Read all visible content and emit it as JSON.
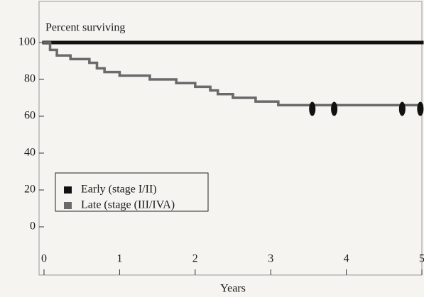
{
  "chart_data": {
    "type": "step",
    "ylabel": "Percent surviving",
    "xlabel": "Years",
    "xlim": [
      0,
      5
    ],
    "ylim": [
      0,
      100
    ],
    "xticks": [
      0,
      1,
      2,
      3,
      4,
      5
    ],
    "yticks": [
      0,
      20,
      40,
      60,
      80,
      100
    ],
    "legend_position": "lower left",
    "series": [
      {
        "name": "Early (stage I/II)",
        "color": "#111111",
        "x": [
          0,
          5
        ],
        "values": [
          100,
          100
        ]
      },
      {
        "name": "Late (stage (III/IVA)",
        "color": "#6a6a6a",
        "x": [
          0,
          0.08,
          0.17,
          0.35,
          0.6,
          0.7,
          0.8,
          1.0,
          1.4,
          1.75,
          2.0,
          2.2,
          2.3,
          2.5,
          2.8,
          3.1,
          5
        ],
        "values": [
          100,
          96,
          93,
          91,
          89,
          86,
          84,
          82,
          80,
          78,
          76,
          74,
          72,
          70,
          68,
          66,
          64
        ],
        "censor_x": [
          3.55,
          3.84,
          4.74,
          4.98
        ],
        "censor_values": [
          64,
          64,
          64,
          64
        ]
      }
    ]
  }
}
